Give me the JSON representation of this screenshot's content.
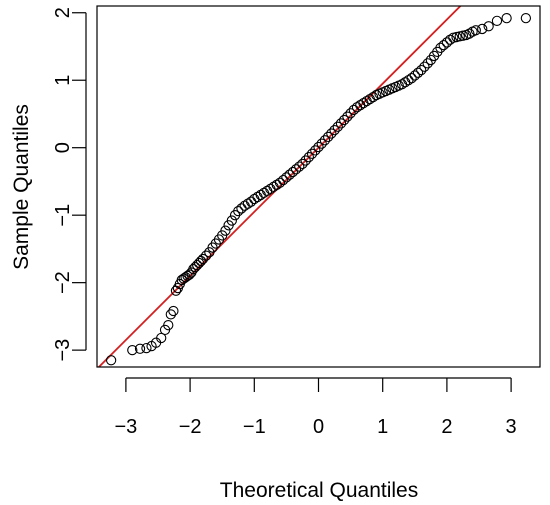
{
  "chart_data": {
    "type": "scatter",
    "subtype": "normal-qq-plot",
    "title": "",
    "xlabel": "Theoretical Quantiles",
    "ylabel": "Sample Quantiles",
    "xlim": [
      -3.45,
      3.45
    ],
    "ylim": [
      -3.25,
      2.1
    ],
    "xticks": [
      -3,
      -2,
      -1,
      0,
      1,
      2,
      3
    ],
    "xtick_labels": [
      "−3",
      "−2",
      "−1",
      "0",
      "1",
      "2",
      "3"
    ],
    "yticks": [
      -3,
      -2,
      -1,
      0,
      1,
      2
    ],
    "ytick_labels": [
      "−3",
      "−2",
      "−1",
      "0",
      "1",
      "2"
    ],
    "grid": false,
    "marker": "open circle",
    "reference_line": {
      "color": "#d42020",
      "slope": 0.95,
      "intercept": 0.0
    },
    "series": [
      {
        "values_note_absent": true,
        "points": [
          [
            -3.23,
            -3.15
          ],
          [
            -2.9,
            -3.0
          ],
          [
            -2.78,
            -2.98
          ],
          [
            -2.68,
            -2.97
          ],
          [
            -2.6,
            -2.94
          ],
          [
            -2.53,
            -2.89
          ],
          [
            -2.45,
            -2.82
          ],
          [
            -2.39,
            -2.7
          ],
          [
            -2.34,
            -2.63
          ],
          [
            -2.3,
            -2.47
          ],
          [
            -2.26,
            -2.42
          ],
          [
            -2.22,
            -2.12
          ],
          [
            -2.19,
            -2.08
          ],
          [
            -2.16,
            -2.02
          ],
          [
            -2.13,
            -1.96
          ],
          [
            -2.1,
            -1.94
          ],
          [
            -2.07,
            -1.92
          ],
          [
            -2.04,
            -1.9
          ],
          [
            -2.01,
            -1.88
          ],
          [
            -1.98,
            -1.85
          ],
          [
            -1.95,
            -1.8
          ],
          [
            -1.92,
            -1.77
          ],
          [
            -1.89,
            -1.74
          ],
          [
            -1.86,
            -1.71
          ],
          [
            -1.83,
            -1.68
          ],
          [
            -1.8,
            -1.65
          ],
          [
            -1.75,
            -1.6
          ],
          [
            -1.7,
            -1.55
          ],
          [
            -1.65,
            -1.48
          ],
          [
            -1.6,
            -1.42
          ],
          [
            -1.55,
            -1.36
          ],
          [
            -1.5,
            -1.3
          ],
          [
            -1.45,
            -1.23
          ],
          [
            -1.4,
            -1.15
          ],
          [
            -1.35,
            -1.08
          ],
          [
            -1.3,
            -1.0
          ],
          [
            -1.25,
            -0.94
          ],
          [
            -1.2,
            -0.9
          ],
          [
            -1.15,
            -0.86
          ],
          [
            -1.1,
            -0.83
          ],
          [
            -1.05,
            -0.8
          ],
          [
            -1.0,
            -0.76
          ],
          [
            -0.95,
            -0.73
          ],
          [
            -0.9,
            -0.7
          ],
          [
            -0.85,
            -0.67
          ],
          [
            -0.8,
            -0.64
          ],
          [
            -0.75,
            -0.61
          ],
          [
            -0.7,
            -0.58
          ],
          [
            -0.65,
            -0.55
          ],
          [
            -0.6,
            -0.52
          ],
          [
            -0.55,
            -0.48
          ],
          [
            -0.5,
            -0.44
          ],
          [
            -0.45,
            -0.4
          ],
          [
            -0.4,
            -0.36
          ],
          [
            -0.35,
            -0.32
          ],
          [
            -0.3,
            -0.28
          ],
          [
            -0.25,
            -0.24
          ],
          [
            -0.2,
            -0.19
          ],
          [
            -0.15,
            -0.14
          ],
          [
            -0.1,
            -0.09
          ],
          [
            -0.05,
            -0.04
          ],
          [
            0.0,
            0.01
          ],
          [
            0.05,
            0.06
          ],
          [
            0.1,
            0.11
          ],
          [
            0.15,
            0.16
          ],
          [
            0.2,
            0.21
          ],
          [
            0.25,
            0.26
          ],
          [
            0.3,
            0.31
          ],
          [
            0.35,
            0.36
          ],
          [
            0.4,
            0.41
          ],
          [
            0.45,
            0.46
          ],
          [
            0.5,
            0.51
          ],
          [
            0.55,
            0.56
          ],
          [
            0.6,
            0.6
          ],
          [
            0.65,
            0.63
          ],
          [
            0.7,
            0.66
          ],
          [
            0.75,
            0.69
          ],
          [
            0.8,
            0.72
          ],
          [
            0.85,
            0.75
          ],
          [
            0.9,
            0.78
          ],
          [
            0.95,
            0.8
          ],
          [
            1.0,
            0.82
          ],
          [
            1.05,
            0.84
          ],
          [
            1.1,
            0.86
          ],
          [
            1.15,
            0.88
          ],
          [
            1.2,
            0.9
          ],
          [
            1.25,
            0.92
          ],
          [
            1.3,
            0.94
          ],
          [
            1.35,
            0.97
          ],
          [
            1.4,
            1.0
          ],
          [
            1.45,
            1.03
          ],
          [
            1.5,
            1.07
          ],
          [
            1.55,
            1.11
          ],
          [
            1.6,
            1.15
          ],
          [
            1.65,
            1.2
          ],
          [
            1.7,
            1.25
          ],
          [
            1.75,
            1.3
          ],
          [
            1.8,
            1.36
          ],
          [
            1.85,
            1.42
          ],
          [
            1.9,
            1.48
          ],
          [
            1.95,
            1.52
          ],
          [
            2.0,
            1.56
          ],
          [
            2.05,
            1.6
          ],
          [
            2.1,
            1.63
          ],
          [
            2.15,
            1.64
          ],
          [
            2.2,
            1.65
          ],
          [
            2.25,
            1.66
          ],
          [
            2.3,
            1.67
          ],
          [
            2.35,
            1.69
          ],
          [
            2.4,
            1.72
          ],
          [
            2.45,
            1.74
          ],
          [
            2.55,
            1.76
          ],
          [
            2.65,
            1.8
          ],
          [
            2.78,
            1.88
          ],
          [
            2.93,
            1.92
          ],
          [
            3.23,
            1.92
          ]
        ]
      }
    ]
  }
}
